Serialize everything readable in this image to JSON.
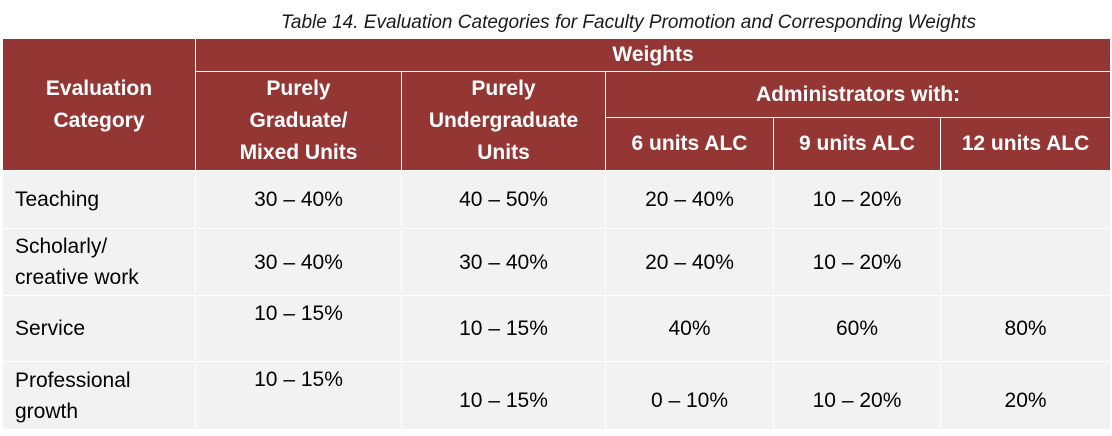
{
  "caption": "Table 14. Evaluation Categories for Faculty Promotion and Corresponding Weights",
  "header": {
    "evaluation_category": [
      "Evaluation",
      "Category"
    ],
    "weights": "Weights",
    "purely_graduate": [
      "Purely",
      "Graduate/",
      "Mixed Units"
    ],
    "purely_undergraduate": [
      "Purely",
      "Undergraduate",
      "Units"
    ],
    "administrators_with": "Administrators with:",
    "alc_6": "6 units ALC",
    "alc_9": "9 units ALC",
    "alc_12": "12 units ALC"
  },
  "rows": [
    {
      "category": [
        "Teaching"
      ],
      "graduate": "30 – 40%",
      "undergraduate": "40 – 50%",
      "alc_6": "20 – 40%",
      "alc_9": "10 – 20%",
      "alc_12": ""
    },
    {
      "category": [
        "Scholarly/",
        "creative work"
      ],
      "graduate": "30 – 40%",
      "undergraduate": "30 – 40%",
      "alc_6": "20 – 40%",
      "alc_9": "10 – 20%",
      "alc_12": ""
    },
    {
      "category": [
        "Service"
      ],
      "graduate": "10 – 15%",
      "undergraduate": "10 – 15%",
      "alc_6": "40%",
      "alc_9": "60%",
      "alc_12": "80%"
    },
    {
      "category": [
        "Professional",
        "growth"
      ],
      "graduate": "10 – 15%",
      "undergraduate": "10 – 15%",
      "alc_6": "0 – 10%",
      "alc_9": "10 – 20%",
      "alc_12": "20%"
    }
  ]
}
